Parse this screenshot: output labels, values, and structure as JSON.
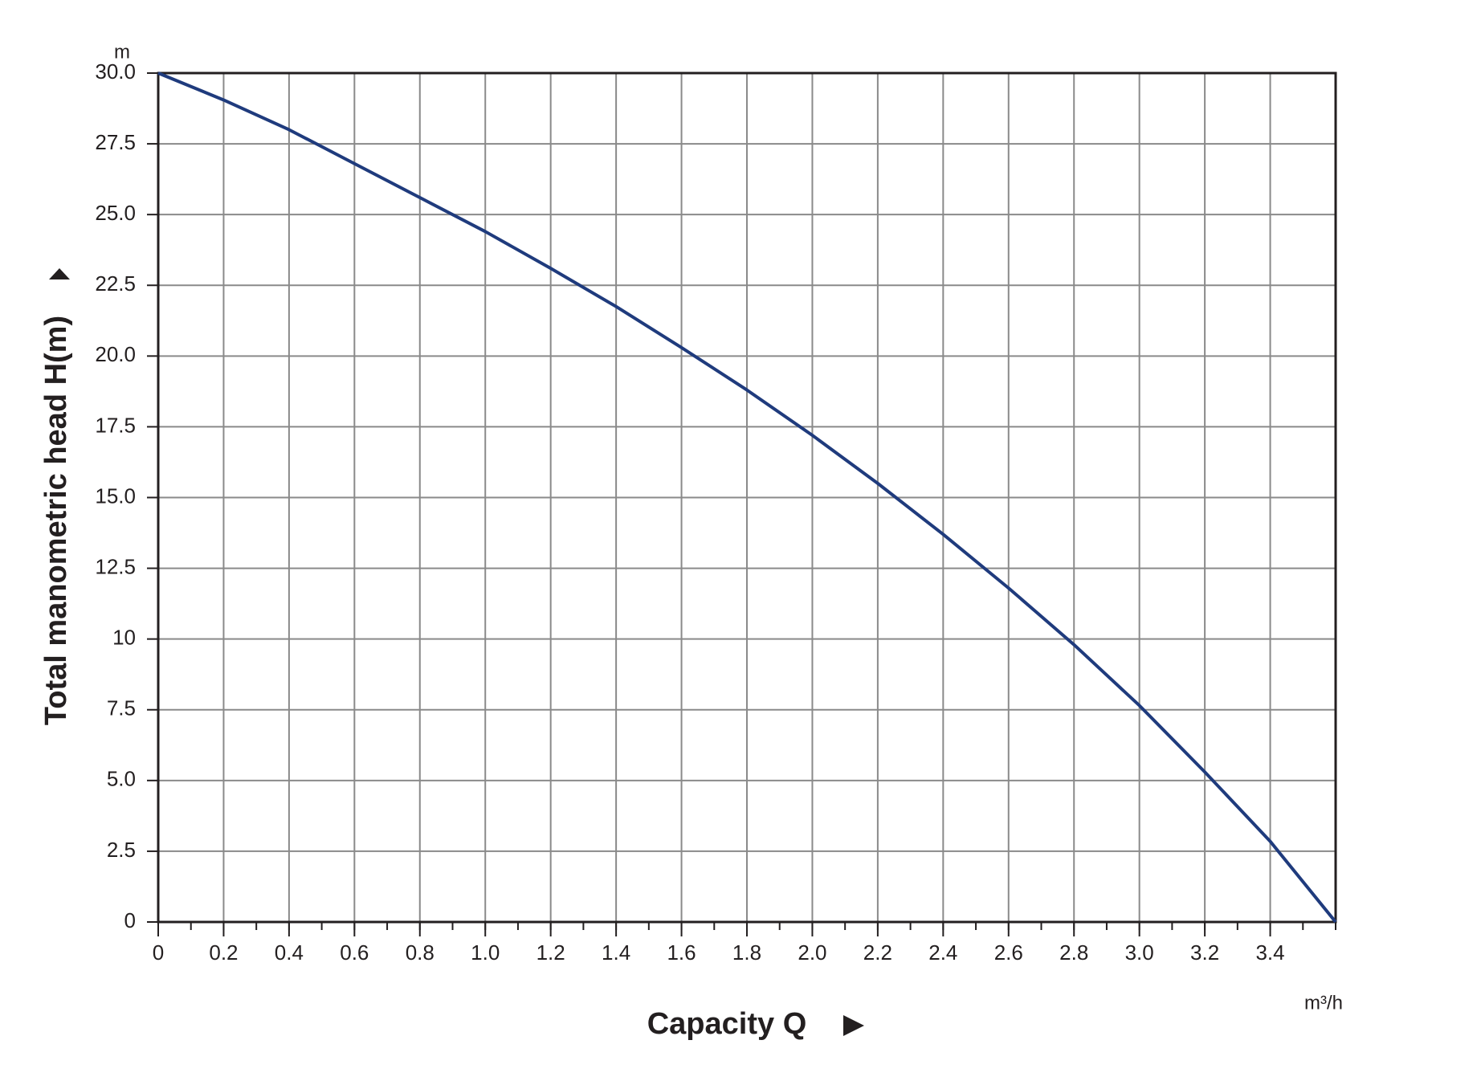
{
  "chart_data": {
    "type": "line",
    "y_label": "Total manometric head H(m)",
    "x_label": "Capacity Q",
    "y_unit": "m",
    "x_unit": "m³/h",
    "x": [
      0,
      0.2,
      0.4,
      0.6,
      0.8,
      1.0,
      1.2,
      1.4,
      1.6,
      1.8,
      2.0,
      2.2,
      2.4,
      2.6,
      2.8,
      3.0,
      3.2,
      3.4,
      3.6
    ],
    "series": [
      {
        "name": "H",
        "color": "#1f3b7d",
        "values": [
          30,
          29.05,
          28,
          26.8,
          25.6,
          24.4,
          23.1,
          21.75,
          20.3,
          18.8,
          17.2,
          15.5,
          13.7,
          11.8,
          9.8,
          7.65,
          5.3,
          2.85,
          0
        ]
      }
    ],
    "xlim": [
      0,
      3.6
    ],
    "ylim": [
      0,
      30
    ],
    "xticks": [
      0,
      0.2,
      0.4,
      0.6,
      0.8,
      {
        "value": 1,
        "label": "1.0"
      },
      1.2,
      1.4,
      1.6,
      1.8,
      {
        "value": 2,
        "label": "2.0"
      },
      2.2,
      2.4,
      2.6,
      2.8,
      {
        "value": 3,
        "label": "3.0"
      },
      3.2,
      3.4
    ],
    "yticks": [
      {
        "value": 0,
        "label": "0"
      },
      2.5,
      {
        "value": 5,
        "label": "5.0"
      },
      7.5,
      {
        "value": 10,
        "label": "10"
      },
      12.5,
      {
        "value": 15,
        "label": "15.0"
      },
      17.5,
      {
        "value": 20,
        "label": "20.0"
      },
      22.5,
      {
        "value": 25,
        "label": "25.0"
      },
      27.5,
      {
        "value": 30,
        "label": "30.0"
      }
    ],
    "grid": true
  }
}
